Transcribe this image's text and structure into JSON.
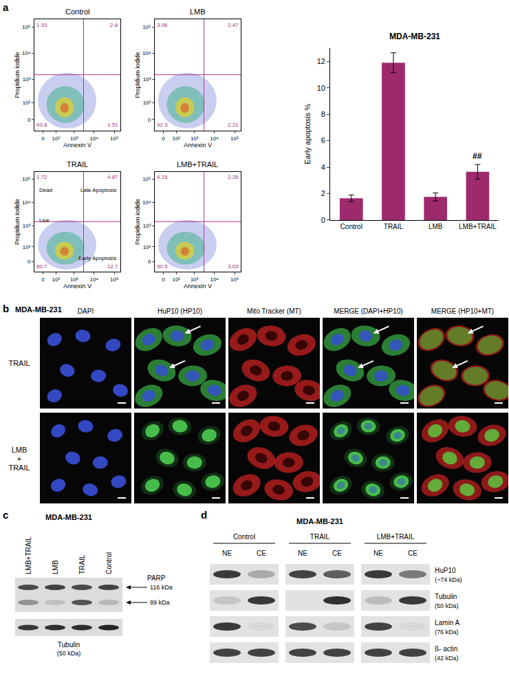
{
  "panel_labels": [
    "a",
    "b",
    "c",
    "d"
  ],
  "chart_data": [
    {
      "type": "flow",
      "title": "Control",
      "x_label": "Annexin V",
      "y_label": "Propidium iodide",
      "xlim": [
        -50,
        200000
      ],
      "ylim": [
        -50,
        200000
      ],
      "xticks": [
        0,
        {
          "value": 100,
          "label": "10²"
        },
        {
          "value": 1000,
          "label": "10³"
        },
        {
          "value": 10000,
          "label": "10⁴"
        },
        {
          "value": 100000,
          "label": "10⁵"
        }
      ],
      "yticks": [
        0,
        {
          "value": 100,
          "label": "10²"
        },
        {
          "value": 1000,
          "label": "10³"
        },
        {
          "value": 10000,
          "label": "10⁴"
        },
        {
          "value": 100000,
          "label": "10⁵"
        }
      ],
      "gate": {
        "x": 3000,
        "y": 1500
      },
      "quadrants": {
        "upper_left": 1.93,
        "upper_right": 2.8,
        "lower_left": 93.8,
        "lower_right": 1.51
      },
      "grid": false
    },
    {
      "type": "flow",
      "title": "LMB",
      "x_label": "Annexin V",
      "y_label": "Propidium iodide",
      "xlim": [
        -50,
        200000
      ],
      "ylim": [
        -50,
        200000
      ],
      "xticks": [
        0,
        {
          "value": 100,
          "label": "10²"
        },
        {
          "value": 1000,
          "label": "10³"
        },
        {
          "value": 10000,
          "label": "10⁴"
        },
        {
          "value": 100000,
          "label": "10⁵"
        }
      ],
      "yticks": [
        0,
        {
          "value": 100,
          "label": "10²"
        },
        {
          "value": 1000,
          "label": "10³"
        },
        {
          "value": 10000,
          "label": "10⁴"
        },
        {
          "value": 100000,
          "label": "10⁵"
        }
      ],
      "gate": {
        "x": 3000,
        "y": 1500
      },
      "quadrants": {
        "upper_left": 3.06,
        "upper_right": 2.47,
        "lower_left": 92.3,
        "lower_right": 2.21
      },
      "grid": false
    },
    {
      "type": "flow",
      "title": "TRAIL",
      "x_label": "Annexin V",
      "y_label": "Propidium iodide",
      "xlim": [
        -50,
        200000
      ],
      "ylim": [
        -50,
        200000
      ],
      "xticks": [
        0,
        {
          "value": 100,
          "label": "10²"
        },
        {
          "value": 1000,
          "label": "10³"
        },
        {
          "value": 10000,
          "label": "10⁴"
        },
        {
          "value": 100000,
          "label": "10⁵"
        }
      ],
      "yticks": [
        0,
        {
          "value": 100,
          "label": "10²"
        },
        {
          "value": 1000,
          "label": "10³"
        },
        {
          "value": 10000,
          "label": "10⁴"
        },
        {
          "value": 100000,
          "label": "10⁵"
        }
      ],
      "gate": {
        "x": 3000,
        "y": 1500
      },
      "quadrants": {
        "upper_left": 1.72,
        "upper_right": 4.87,
        "lower_left": 80.7,
        "lower_right": 12.7
      },
      "quadrant_labels": {
        "upper_left": "Dead",
        "upper_right": "Late Apoptosis",
        "lower_left": "Live",
        "lower_right": "Early Apoptosis"
      },
      "grid": false
    },
    {
      "type": "flow",
      "title": "LMB+TRAIL",
      "x_label": "Annexin V",
      "y_label": "Propidium iodide",
      "xlim": [
        -50,
        200000
      ],
      "ylim": [
        -50,
        200000
      ],
      "xticks": [
        0,
        {
          "value": 100,
          "label": "10²"
        },
        {
          "value": 1000,
          "label": "10³"
        },
        {
          "value": 10000,
          "label": "10⁴"
        },
        {
          "value": 100000,
          "label": "10⁵"
        }
      ],
      "yticks": [
        0,
        {
          "value": 100,
          "label": "10²"
        },
        {
          "value": 1000,
          "label": "10³"
        },
        {
          "value": 10000,
          "label": "10⁴"
        },
        {
          "value": 100000,
          "label": "10⁵"
        }
      ],
      "gate": {
        "x": 3000,
        "y": 1500
      },
      "quadrants": {
        "upper_left": 4.15,
        "upper_right": 2.28,
        "lower_left": 90.5,
        "lower_right": 3.03
      },
      "grid": false
    },
    {
      "type": "bar",
      "title": "MDA-MB-231",
      "y_label": "Early apoptosis %",
      "categories": [
        "Control",
        "TRAIL",
        "LMB",
        "LMB+TRAIL"
      ],
      "values": [
        1.65,
        11.9,
        1.75,
        3.65
      ],
      "errors": [
        0.25,
        0.75,
        0.3,
        0.55
      ],
      "color": "#9e2a6e",
      "ylim": [
        0,
        13
      ],
      "yticks": [
        0,
        2,
        4,
        6,
        8,
        10,
        12
      ],
      "annotations": [
        {
          "category": "LMB+TRAIL",
          "text": "##"
        }
      ],
      "grid": false
    }
  ],
  "microscopy": {
    "cell_line": "MDA-MB-231",
    "columns": [
      "DAPI",
      "HuP10 (HP10)",
      "Mito Tracker (MT)",
      "MERGE (DAPI+HP10)",
      "MERGE (HP10+MT)"
    ],
    "rows": [
      "TRAIL",
      "LMB + TRAIL"
    ]
  },
  "blot_c": {
    "title": "MDA-MB-231",
    "lanes": [
      "LMB+TRAIL",
      "LMB",
      "TRAIL",
      "Control"
    ],
    "rows": [
      {
        "name": "PARP",
        "bands": [
          {
            "label": "116 kDa",
            "intensity": [
              0.8,
              0.85,
              0.8,
              0.85
            ]
          },
          {
            "label": "89 kDa",
            "intensity": [
              0.4,
              0.15,
              0.75,
              0.2
            ]
          }
        ]
      },
      {
        "name": "Tubulin",
        "size": "(50 kDa)",
        "bands": [
          {
            "intensity": [
              0.9,
              0.95,
              0.95,
              1.0
            ]
          }
        ]
      }
    ]
  },
  "blot_d": {
    "title": "MDA-MB-231",
    "groups": [
      "Control",
      "TRAIL",
      "LMB+TRAIL"
    ],
    "fractions": [
      "NE",
      "CE"
    ],
    "rows": [
      {
        "name": "HuP10",
        "size": "(~74 kDa)",
        "intensity": [
          0.9,
          0.3,
          0.85,
          0.7,
          0.9,
          0.55
        ]
      },
      {
        "name": "Tubulin",
        "size": "(50 kDa)",
        "intensity": [
          0.15,
          0.9,
          0.0,
          0.95,
          0.2,
          0.9
        ]
      },
      {
        "name": "Lamin A",
        "size": "(76 kDa)",
        "intensity": [
          0.9,
          0.05,
          0.8,
          0.15,
          0.85,
          0.05
        ]
      },
      {
        "name": "ß- actin",
        "size": "(42 kDa)",
        "intensity": [
          0.85,
          0.85,
          0.85,
          0.85,
          0.85,
          0.85
        ]
      }
    ]
  }
}
